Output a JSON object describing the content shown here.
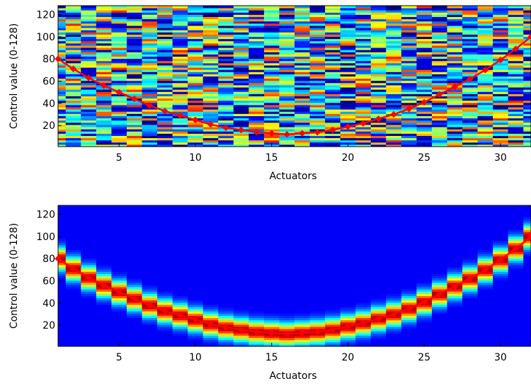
{
  "chart_data": [
    {
      "type": "heatmap",
      "colormap": "jet",
      "xlabel": "Actuators",
      "ylabel": "Control value (0-128)",
      "xlim": [
        1,
        32
      ],
      "ylim": [
        1,
        128
      ],
      "xticks": [
        5,
        10,
        15,
        20,
        25,
        30
      ],
      "yticks": [
        20,
        40,
        60,
        80,
        100,
        120
      ],
      "heatmap_description": "random noise",
      "series": [
        {
          "type": "line",
          "color": "#ff0000",
          "marker": "diamond",
          "x": [
            1,
            2,
            3,
            4,
            5,
            6,
            7,
            8,
            9,
            10,
            11,
            12,
            13,
            14,
            15,
            16,
            17,
            18,
            19,
            20,
            21,
            22,
            23,
            24,
            25,
            26,
            27,
            28,
            29,
            30,
            31,
            32
          ],
          "y": [
            80,
            71,
            63,
            56,
            50,
            44,
            38,
            33,
            29,
            25,
            21,
            18,
            16,
            14,
            13,
            12,
            13,
            14,
            16,
            19,
            22,
            26,
            30,
            35,
            41,
            48,
            55,
            62,
            70,
            79,
            89,
            100
          ]
        }
      ]
    },
    {
      "type": "heatmap",
      "colormap": "jet",
      "xlabel": "Actuators",
      "ylabel": "Control value (0-128)",
      "xlim": [
        1,
        32
      ],
      "ylim": [
        1,
        128
      ],
      "xticks": [
        5,
        10,
        15,
        20,
        25,
        30
      ],
      "yticks": [
        20,
        40,
        60,
        80,
        100,
        120
      ],
      "heatmap_description": "gaussian band centred on curve",
      "series": [
        {
          "type": "line",
          "color": "#ff0000",
          "marker": "diamond",
          "x": [
            1,
            2,
            3,
            4,
            5,
            6,
            7,
            8,
            9,
            10,
            11,
            12,
            13,
            14,
            15,
            16,
            17,
            18,
            19,
            20,
            21,
            22,
            23,
            24,
            25,
            26,
            27,
            28,
            29,
            30,
            31,
            32
          ],
          "y": [
            80,
            71,
            63,
            56,
            50,
            44,
            38,
            33,
            29,
            25,
            21,
            18,
            16,
            14,
            13,
            12,
            13,
            14,
            16,
            19,
            22,
            26,
            30,
            35,
            41,
            48,
            55,
            62,
            70,
            79,
            89,
            100
          ]
        }
      ]
    }
  ]
}
